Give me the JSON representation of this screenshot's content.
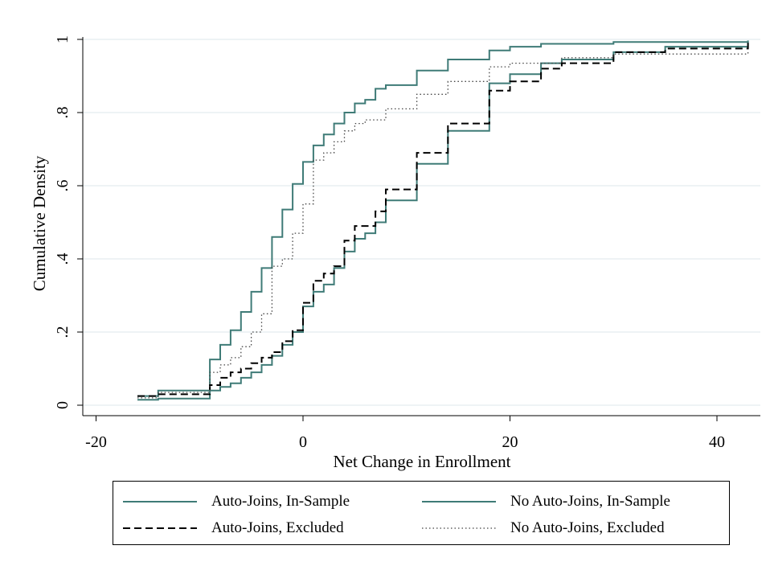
{
  "chart_data": {
    "type": "line",
    "title": "",
    "xlabel": "Net Change in Enrollment",
    "ylabel": "Cumulative Density",
    "xlim": [
      -22,
      43
    ],
    "ylim": [
      0,
      1
    ],
    "x_ticks": [
      -20,
      0,
      20,
      40
    ],
    "x_tick_labels": [
      "-20",
      "0",
      "20",
      "40"
    ],
    "y_ticks": [
      0,
      0.2,
      0.4,
      0.6,
      0.8,
      1
    ],
    "y_tick_labels": [
      "0",
      ".2",
      ".4",
      ".6",
      ".8",
      "1"
    ],
    "grid": "horizontal",
    "legend_position": "bottom",
    "series": [
      {
        "name": "Auto-Joins, In-Sample",
        "color": "#3f7b77",
        "style": "solid",
        "step": true,
        "points": [
          [
            -16,
            0.025
          ],
          [
            -14,
            0.04
          ],
          [
            -9,
            0.11
          ],
          [
            -9,
            0.125
          ],
          [
            -8,
            0.135
          ],
          [
            -8,
            0.165
          ],
          [
            -7,
            0.18
          ],
          [
            -7,
            0.205
          ],
          [
            -6,
            0.22
          ],
          [
            -6,
            0.255
          ],
          [
            -5,
            0.27
          ],
          [
            -5,
            0.31
          ],
          [
            -4,
            0.32
          ],
          [
            -4,
            0.375
          ],
          [
            -3,
            0.385
          ],
          [
            -3,
            0.46
          ],
          [
            -2,
            0.465
          ],
          [
            -2,
            0.535
          ],
          [
            -1,
            0.545
          ],
          [
            -1,
            0.605
          ],
          [
            0,
            0.61
          ],
          [
            0,
            0.665
          ],
          [
            1,
            0.675
          ],
          [
            1,
            0.71
          ],
          [
            2,
            0.72
          ],
          [
            2,
            0.74
          ],
          [
            3,
            0.75
          ],
          [
            3,
            0.77
          ],
          [
            4,
            0.78
          ],
          [
            4,
            0.8
          ],
          [
            5,
            0.81
          ],
          [
            5,
            0.825
          ],
          [
            6,
            0.835
          ],
          [
            7,
            0.855
          ],
          [
            7,
            0.865
          ],
          [
            8,
            0.875
          ],
          [
            11,
            0.905
          ],
          [
            11,
            0.915
          ],
          [
            14,
            0.945
          ],
          [
            18,
            0.97
          ],
          [
            20,
            0.98
          ],
          [
            23,
            0.988
          ],
          [
            30,
            0.993
          ],
          [
            43,
            0.995
          ]
        ]
      },
      {
        "name": "No Auto-Joins, In-Sample",
        "color": "#3f7b77",
        "style": "solid",
        "step": true,
        "points": [
          [
            -16,
            0.015
          ],
          [
            -14,
            0.018
          ],
          [
            -9,
            0.04
          ],
          [
            -8,
            0.05
          ],
          [
            -7,
            0.06
          ],
          [
            -6,
            0.075
          ],
          [
            -5,
            0.09
          ],
          [
            -4,
            0.11
          ],
          [
            -3,
            0.135
          ],
          [
            -2,
            0.165
          ],
          [
            -1,
            0.2
          ],
          [
            0,
            0.235
          ],
          [
            0,
            0.27
          ],
          [
            1,
            0.285
          ],
          [
            1,
            0.31
          ],
          [
            2,
            0.33
          ],
          [
            3,
            0.35
          ],
          [
            3,
            0.375
          ],
          [
            4,
            0.395
          ],
          [
            4,
            0.42
          ],
          [
            5,
            0.44
          ],
          [
            5,
            0.455
          ],
          [
            6,
            0.47
          ],
          [
            7,
            0.5
          ],
          [
            8,
            0.54
          ],
          [
            8,
            0.56
          ],
          [
            11,
            0.635
          ],
          [
            11,
            0.66
          ],
          [
            14,
            0.75
          ],
          [
            18,
            0.88
          ],
          [
            20,
            0.905
          ],
          [
            23,
            0.935
          ],
          [
            25,
            0.945
          ],
          [
            30,
            0.965
          ],
          [
            35,
            0.98
          ],
          [
            43,
            0.997
          ]
        ]
      },
      {
        "name": "Auto-Joins, Excluded",
        "color": "#000000",
        "style": "dashed",
        "step": true,
        "points": [
          [
            -16,
            0.025
          ],
          [
            -14,
            0.03
          ],
          [
            -9,
            0.055
          ],
          [
            -8,
            0.075
          ],
          [
            -7,
            0.09
          ],
          [
            -6,
            0.1
          ],
          [
            -5,
            0.115
          ],
          [
            -4,
            0.13
          ],
          [
            -3,
            0.145
          ],
          [
            -2,
            0.175
          ],
          [
            -1,
            0.205
          ],
          [
            0,
            0.24
          ],
          [
            0,
            0.28
          ],
          [
            1,
            0.31
          ],
          [
            1,
            0.34
          ],
          [
            2,
            0.36
          ],
          [
            3,
            0.38
          ],
          [
            4,
            0.41
          ],
          [
            4,
            0.45
          ],
          [
            5,
            0.47
          ],
          [
            5,
            0.49
          ],
          [
            7,
            0.53
          ],
          [
            8,
            0.57
          ],
          [
            8,
            0.59
          ],
          [
            11,
            0.66
          ],
          [
            11,
            0.69
          ],
          [
            14,
            0.77
          ],
          [
            18,
            0.86
          ],
          [
            20,
            0.885
          ],
          [
            23,
            0.92
          ],
          [
            25,
            0.935
          ],
          [
            30,
            0.965
          ],
          [
            35,
            0.975
          ],
          [
            43,
            0.995
          ]
        ]
      },
      {
        "name": "No Auto-Joins, Excluded",
        "color": "#444444",
        "style": "dotted",
        "step": true,
        "points": [
          [
            -16,
            0.02
          ],
          [
            -14,
            0.035
          ],
          [
            -9,
            0.09
          ],
          [
            -8,
            0.11
          ],
          [
            -7,
            0.13
          ],
          [
            -6,
            0.16
          ],
          [
            -5,
            0.2
          ],
          [
            -4,
            0.25
          ],
          [
            -3,
            0.31
          ],
          [
            -3,
            0.38
          ],
          [
            -2,
            0.4
          ],
          [
            -1,
            0.47
          ],
          [
            0,
            0.55
          ],
          [
            1,
            0.64
          ],
          [
            1,
            0.67
          ],
          [
            2,
            0.69
          ],
          [
            3,
            0.72
          ],
          [
            4,
            0.75
          ],
          [
            5,
            0.77
          ],
          [
            6,
            0.78
          ],
          [
            8,
            0.81
          ],
          [
            11,
            0.85
          ],
          [
            14,
            0.885
          ],
          [
            18,
            0.925
          ],
          [
            20,
            0.935
          ],
          [
            25,
            0.95
          ],
          [
            30,
            0.96
          ],
          [
            43,
            0.97
          ]
        ]
      }
    ]
  }
}
